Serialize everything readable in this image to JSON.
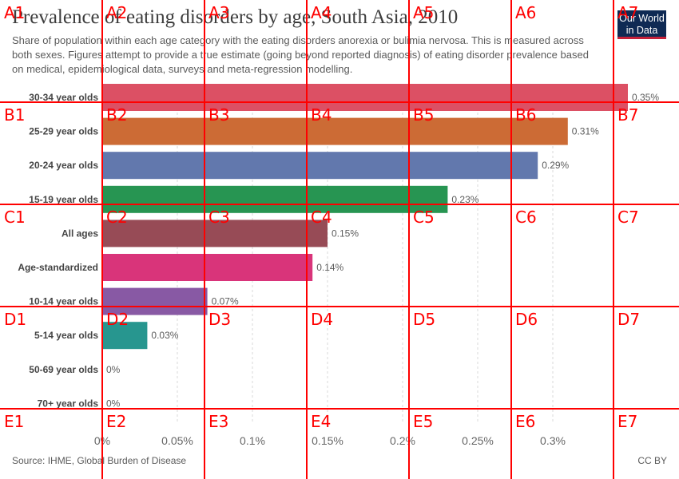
{
  "header": {
    "title": "Prevalence of eating disorders by age, South Asia, 2010",
    "subtitle": "Share of population within each age category with the eating disorders anorexia or bulimia nervosa. This is measured across both sexes. Figures attempt to provide a true estimate (going beyond reported diagnosis) of eating disorder prevalence based on medical, epidemiological data, surveys and meta-regression modelling.",
    "logo_line1": "Our World",
    "logo_line2": "in Data"
  },
  "footer": {
    "source": "Source: IHME, Global Burden of Disease",
    "license": "CC BY"
  },
  "chart_data": {
    "type": "bar",
    "orientation": "horizontal",
    "title": "Prevalence of eating disorders by age, South Asia, 2010",
    "categories": [
      "30-34 year olds",
      "25-29 year olds",
      "20-24 year olds",
      "15-19 year olds",
      "All ages",
      "Age-standardized",
      "10-14 year olds",
      "5-14 year olds",
      "50-69 year olds",
      "70+ year olds"
    ],
    "values": [
      0.35,
      0.31,
      0.29,
      0.23,
      0.15,
      0.14,
      0.07,
      0.03,
      0,
      0
    ],
    "value_labels": [
      "0.35%",
      "0.31%",
      "0.29%",
      "0.23%",
      "0.15%",
      "0.14%",
      "0.07%",
      "0.03%",
      "0%",
      "0%"
    ],
    "colors": [
      "#dc5064",
      "#cc6b35",
      "#6278ad",
      "#279552",
      "#974b56",
      "#d9347a",
      "#8859a4",
      "#27968f",
      "#999999",
      "#999999"
    ],
    "xlim": [
      0,
      0.35
    ],
    "x_ticks": [
      0,
      0.05,
      0.1,
      0.15,
      0.2,
      0.25,
      0.3
    ],
    "x_tick_labels": [
      "0%",
      "0.05%",
      "0.1%",
      "0.15%",
      "0.2%",
      "0.25%",
      "0.3%"
    ],
    "xlabel": "",
    "ylabel": "",
    "grid": true
  },
  "overlay": {
    "color": "#ff0000",
    "labels": [
      "A1",
      "A2",
      "A3",
      "A4",
      "A5",
      "A6",
      "A7",
      "B1",
      "B2",
      "B3",
      "B4",
      "B5",
      "B6",
      "B7",
      "C1",
      "C2",
      "C3",
      "C4",
      "C5",
      "C6",
      "C7",
      "D1",
      "D2",
      "D3",
      "D4",
      "D5",
      "D6",
      "D7",
      "E1",
      "E2",
      "E3",
      "E4",
      "E5",
      "E6",
      "E7"
    ]
  }
}
